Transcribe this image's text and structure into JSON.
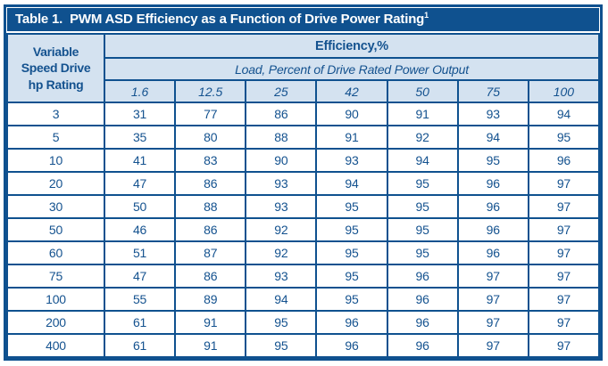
{
  "colors": {
    "dark_blue": "#0F518F",
    "light_blue": "#D4E2F0",
    "text_blue": "#14528F",
    "white": "#FFFFFF"
  },
  "table": {
    "title": "Table 1.  PWM ASD Efficiency as a Function of Drive Power Rating",
    "title_superscript": "1",
    "row_header": "Variable\nSpeed Drive\nhp Rating",
    "efficiency_header": "Efficiency,%",
    "load_header": "Load, Percent of Drive Rated Power Output",
    "load_levels": [
      "1.6",
      "12.5",
      "25",
      "42",
      "50",
      "75",
      "100"
    ],
    "rows": [
      {
        "hp": "3",
        "values": [
          "31",
          "77",
          "86",
          "90",
          "91",
          "93",
          "94"
        ]
      },
      {
        "hp": "5",
        "values": [
          "35",
          "80",
          "88",
          "91",
          "92",
          "94",
          "95"
        ]
      },
      {
        "hp": "10",
        "values": [
          "41",
          "83",
          "90",
          "93",
          "94",
          "95",
          "96"
        ]
      },
      {
        "hp": "20",
        "values": [
          "47",
          "86",
          "93",
          "94",
          "95",
          "96",
          "97"
        ]
      },
      {
        "hp": "30",
        "values": [
          "50",
          "88",
          "93",
          "95",
          "95",
          "96",
          "97"
        ]
      },
      {
        "hp": "50",
        "values": [
          "46",
          "86",
          "92",
          "95",
          "95",
          "96",
          "97"
        ]
      },
      {
        "hp": "60",
        "values": [
          "51",
          "87",
          "92",
          "95",
          "95",
          "96",
          "97"
        ]
      },
      {
        "hp": "75",
        "values": [
          "47",
          "86",
          "93",
          "95",
          "96",
          "97",
          "97"
        ]
      },
      {
        "hp": "100",
        "values": [
          "55",
          "89",
          "94",
          "95",
          "96",
          "97",
          "97"
        ]
      },
      {
        "hp": "200",
        "values": [
          "61",
          "91",
          "95",
          "96",
          "96",
          "97",
          "97"
        ]
      },
      {
        "hp": "400",
        "values": [
          "61",
          "91",
          "95",
          "96",
          "96",
          "97",
          "97"
        ]
      }
    ]
  }
}
